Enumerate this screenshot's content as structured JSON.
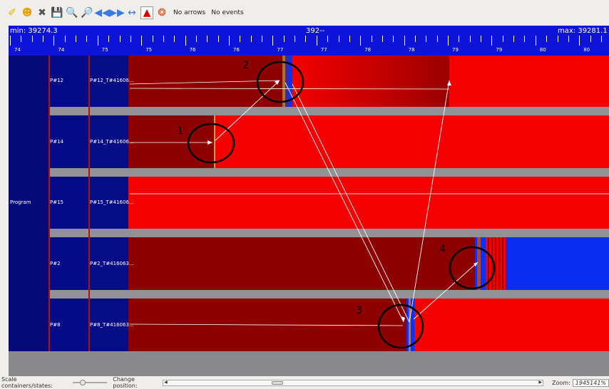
{
  "toolbar": {
    "icons": [
      "brush-icon",
      "smiley-icon",
      "close-x-icon",
      "save-icon",
      "zoom-in-icon",
      "zoom-out-icon",
      "arrow-left-icon",
      "arrow-right-icon",
      "fit-width-icon",
      "flag-icon",
      "lifebuoy-icon"
    ],
    "arrows_label": "No arrows",
    "events_label": "No events"
  },
  "ruler": {
    "min_label": "min: 39274.3",
    "center_label": "392--",
    "max_label": "max: 39281.1",
    "tick_labels": [
      "74",
      "74",
      "75",
      "75",
      "76",
      "76",
      "77",
      "77",
      "78",
      "78",
      "79",
      "79",
      "80",
      "80"
    ]
  },
  "tree": {
    "root_label": "Program",
    "rows": [
      {
        "process": "P#12",
        "thread": "P#12_T#41606..."
      },
      {
        "process": "P#14",
        "thread": "P#14_T#41606..."
      },
      {
        "process": "P#15",
        "thread": "P#15_T#41606..."
      },
      {
        "process": "P#2",
        "thread": "P#2_T#416063..."
      },
      {
        "process": "P#8",
        "thread": "P#8_T#416063..."
      }
    ]
  },
  "annotations": [
    "1",
    "2",
    "3",
    "4"
  ],
  "statusbar": {
    "scale_label": "Scale containers/states:",
    "position_label": "Change position:",
    "zoom_label": "Zoom:",
    "zoom_value": "1945141%"
  },
  "colors": {
    "ruler_blue": "#0d14d8",
    "state_red": "#f40000",
    "state_dark_red": "#8c0000",
    "state_blue": "#0a2cf0",
    "separator_gray": "#919196"
  }
}
